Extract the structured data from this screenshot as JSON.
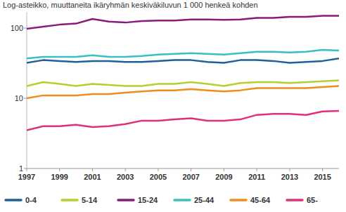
{
  "chart_data": {
    "type": "line",
    "title": "Log-asteikko, muuttaneita ikäryhmän keskiväkiluvun 1 000 henkeä kohden",
    "x": [
      1997,
      1998,
      1999,
      2000,
      2001,
      2002,
      2003,
      2004,
      2005,
      2006,
      2007,
      2008,
      2009,
      2010,
      2011,
      2012,
      2013,
      2014,
      2015,
      2016
    ],
    "xlim": [
      1997,
      2016
    ],
    "xticks": [
      1997,
      1999,
      2001,
      2003,
      2005,
      2007,
      2009,
      2011,
      2013,
      2015
    ],
    "ylim": [
      1,
      170
    ],
    "yticks": [
      1,
      10,
      100
    ],
    "log": "y",
    "grid": false,
    "legend": "bottom",
    "series": [
      {
        "name": "0-4",
        "color": "#1f5f9a",
        "values": [
          32,
          35,
          34,
          33,
          34,
          34,
          33,
          33,
          34,
          35,
          35,
          33,
          32,
          35,
          35,
          34,
          32,
          33,
          34,
          37
        ]
      },
      {
        "name": "5-14",
        "color": "#b5cf2e",
        "values": [
          15,
          17,
          16,
          15,
          16,
          15.5,
          15,
          15,
          16,
          16,
          17,
          16,
          15,
          16.5,
          17,
          17,
          16.5,
          17,
          17.5,
          18
        ]
      },
      {
        "name": "15-24",
        "color": "#8b1a7b",
        "values": [
          98,
          105,
          112,
          116,
          135,
          124,
          120,
          126,
          128,
          128,
          133,
          133,
          131,
          133,
          140,
          140,
          145,
          145,
          150,
          150
        ]
      },
      {
        "name": "25-44",
        "color": "#3bbfc0",
        "values": [
          37,
          39,
          39,
          39,
          41,
          39,
          39,
          40,
          42,
          43,
          44,
          43,
          42,
          44,
          46,
          46,
          45,
          46,
          49,
          48
        ]
      },
      {
        "name": "45-64",
        "color": "#f28c1e",
        "values": [
          10,
          11,
          11,
          11,
          11.5,
          11.5,
          12,
          12.5,
          13,
          13,
          13.5,
          13,
          12.5,
          13,
          14,
          14,
          14,
          14,
          14.5,
          15
        ]
      },
      {
        "name": "65-",
        "color": "#e0307a",
        "values": [
          3.5,
          4,
          4,
          4.2,
          3.9,
          4,
          4.3,
          4.8,
          4.8,
          5,
          5.2,
          4.8,
          4.8,
          5,
          5.8,
          6,
          6,
          5.8,
          6.5,
          6.6
        ]
      }
    ]
  }
}
